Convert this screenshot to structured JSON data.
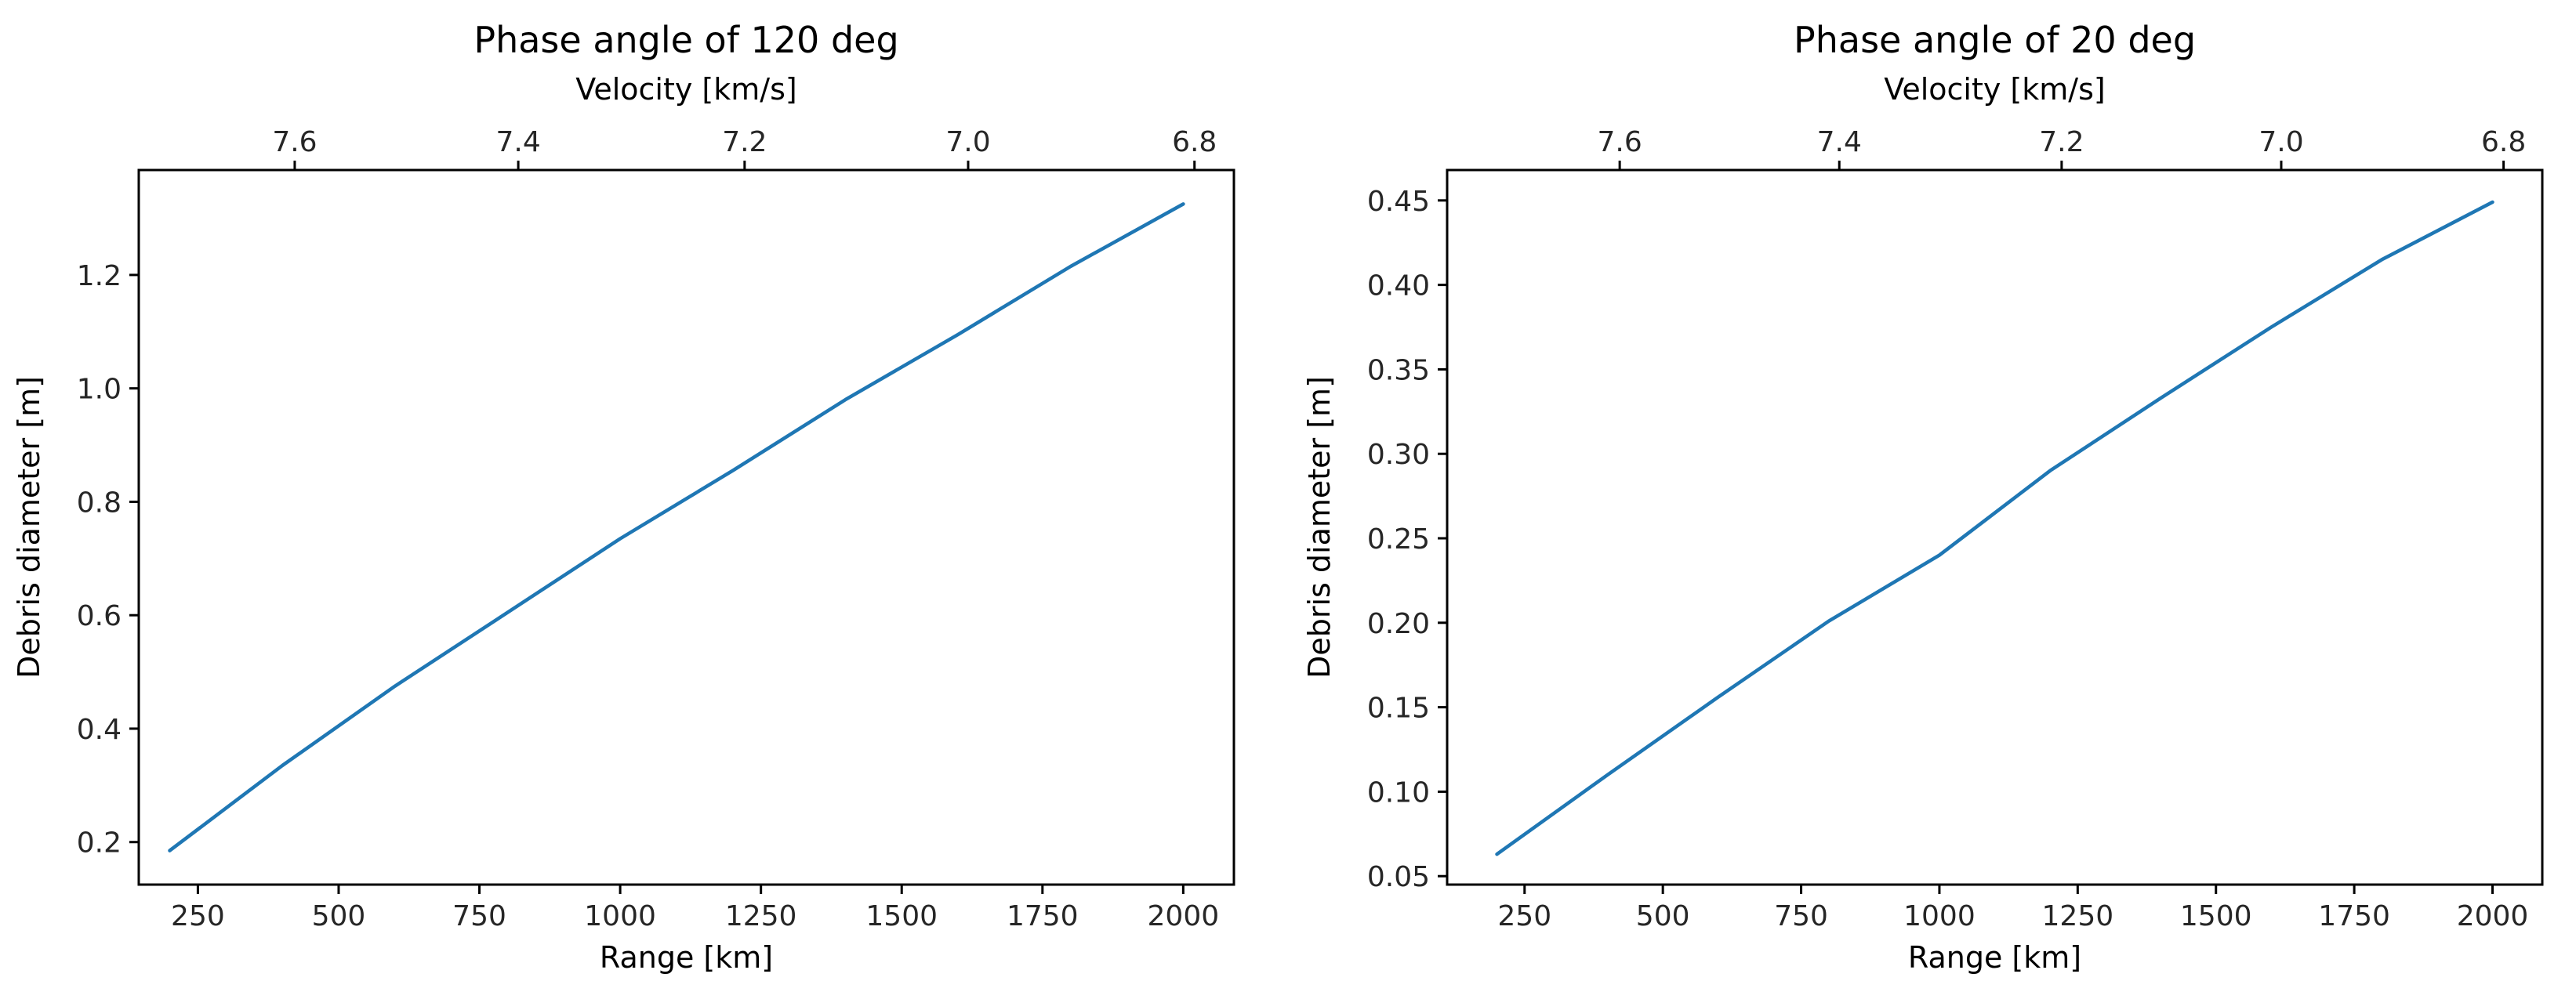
{
  "figure": {
    "background": "#ffffff"
  },
  "chart_data": [
    {
      "type": "line",
      "title": "Phase angle of 120 deg",
      "xlabel": "Range [km]",
      "ylabel": "Debris diameter [m]",
      "top_xlabel": "Velocity [km/s]",
      "xlim": [
        145,
        2090
      ],
      "ylim": [
        0.125,
        1.385
      ],
      "xticks": [
        250,
        500,
        750,
        1000,
        1250,
        1500,
        1750,
        2000
      ],
      "xtick_labels": [
        "250",
        "500",
        "750",
        "1000",
        "1250",
        "1500",
        "1750",
        "2000"
      ],
      "yticks": [
        0.2,
        0.4,
        0.6,
        0.8,
        1.0,
        1.2
      ],
      "ytick_labels": [
        "0.2",
        "0.4",
        "0.6",
        "0.8",
        "1.0",
        "1.2"
      ],
      "top_ticks": [
        7.6,
        7.4,
        7.2,
        7.0,
        6.8
      ],
      "top_tick_labels": [
        "7.6",
        "7.4",
        "7.2",
        "7.0",
        "6.8"
      ],
      "top_tick_positions_in_range_km": [
        422,
        819,
        1221,
        1618,
        2020
      ],
      "grid": false,
      "series": [
        {
          "color": "#1f77b4",
          "x": [
            200,
            400,
            600,
            800,
            1000,
            1200,
            1400,
            1600,
            1800,
            2000
          ],
          "y": [
            0.185,
            0.335,
            0.475,
            0.605,
            0.735,
            0.855,
            0.98,
            1.095,
            1.215,
            1.325
          ]
        }
      ]
    },
    {
      "type": "line",
      "title": "Phase angle of 20 deg",
      "xlabel": "Range [km]",
      "ylabel": "Debris diameter [m]",
      "top_xlabel": "Velocity [km/s]",
      "xlim": [
        110,
        2090
      ],
      "ylim": [
        0.045,
        0.468
      ],
      "xticks": [
        250,
        500,
        750,
        1000,
        1250,
        1500,
        1750,
        2000
      ],
      "xtick_labels": [
        "250",
        "500",
        "750",
        "1000",
        "1250",
        "1500",
        "1750",
        "2000"
      ],
      "yticks": [
        0.05,
        0.1,
        0.15,
        0.2,
        0.25,
        0.3,
        0.35,
        0.4,
        0.45
      ],
      "ytick_labels": [
        "0.05",
        "0.10",
        "0.15",
        "0.20",
        "0.25",
        "0.30",
        "0.35",
        "0.40",
        "0.45"
      ],
      "top_ticks": [
        7.6,
        7.4,
        7.2,
        7.0,
        6.8
      ],
      "top_tick_labels": [
        "7.6",
        "7.4",
        "7.2",
        "7.0",
        "6.8"
      ],
      "top_tick_positions_in_range_km": [
        422,
        819,
        1221,
        1618,
        2020
      ],
      "grid": false,
      "series": [
        {
          "color": "#1f77b4",
          "x": [
            200,
            400,
            600,
            800,
            1000,
            1200,
            1400,
            1600,
            1800,
            2000
          ],
          "y": [
            0.063,
            0.11,
            0.156,
            0.201,
            0.24,
            0.29,
            0.333,
            0.375,
            0.415,
            0.449
          ]
        }
      ]
    }
  ]
}
